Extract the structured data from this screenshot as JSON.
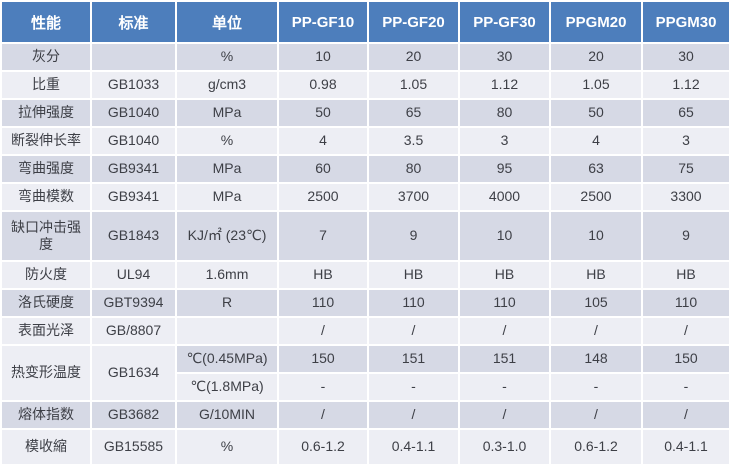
{
  "colors": {
    "header_bg": "#4d7ebc",
    "header_text": "#ffffff",
    "band_dark": "#d6d9e5",
    "band_light": "#edeef4",
    "text": "#3d3f46"
  },
  "table": {
    "columns": [
      "性能",
      "标准",
      "单位",
      "PP-GF10",
      "PP-GF20",
      "PP-GF30",
      "PPGM20",
      "PPGM30"
    ],
    "rows": [
      {
        "property": "灰分",
        "standard": "",
        "unit": "%",
        "values": [
          "10",
          "20",
          "30",
          "20",
          "30"
        ]
      },
      {
        "property": "比重",
        "standard": "GB1033",
        "unit": "g/cm3",
        "values": [
          "0.98",
          "1.05",
          "1.12",
          "1.05",
          "1.12"
        ]
      },
      {
        "property": "拉伸强度",
        "standard": "GB1040",
        "unit": "MPa",
        "values": [
          "50",
          "65",
          "80",
          "50",
          "65"
        ]
      },
      {
        "property": "断裂伸长率",
        "standard": "GB1040",
        "unit": "%",
        "values": [
          "4",
          "3.5",
          "3",
          "4",
          "3"
        ]
      },
      {
        "property": "弯曲强度",
        "standard": "GB9341",
        "unit": "MPa",
        "values": [
          "60",
          "80",
          "95",
          "63",
          "75"
        ]
      },
      {
        "property": "弯曲模数",
        "standard": "GB9341",
        "unit": "MPa",
        "values": [
          "2500",
          "3700",
          "4000",
          "2500",
          "3300"
        ]
      },
      {
        "property": "缺口冲击强度",
        "standard": "GB1843",
        "unit": "KJ/㎡ (23℃)",
        "values": [
          "7",
          "9",
          "10",
          "10",
          "9"
        ]
      },
      {
        "property": "防火度",
        "standard": "UL94",
        "unit": "1.6mm",
        "values": [
          "HB",
          "HB",
          "HB",
          "HB",
          "HB"
        ]
      },
      {
        "property": "洛氏硬度",
        "standard": "GBT9394",
        "unit": "R",
        "values": [
          "110",
          "110",
          "110",
          "105",
          "110"
        ]
      },
      {
        "property": "表面光泽",
        "standard": "GB/8807",
        "unit": "",
        "values": [
          "/",
          "/",
          "/",
          "/",
          "/"
        ]
      },
      {
        "property": "热变形温度",
        "standard": "GB1634",
        "span": 2,
        "unit": "℃(0.45MPa)",
        "values": [
          "150",
          "151",
          "151",
          "148",
          "150"
        ]
      },
      {
        "continuation": true,
        "unit": "℃(1.8MPa)",
        "values": [
          "-",
          "-",
          "-",
          "-",
          "-"
        ]
      },
      {
        "property": "熔体指数",
        "standard": "GB3682",
        "unit": "G/10MIN",
        "values": [
          "/",
          "/",
          "/",
          "/",
          "/"
        ]
      },
      {
        "property": "模收縮",
        "standard": "GB15585",
        "unit": "%",
        "values": [
          "0.6-1.2",
          "0.4-1.1",
          "0.3-1.0",
          "0.6-1.2",
          "0.4-1.1"
        ]
      }
    ]
  }
}
